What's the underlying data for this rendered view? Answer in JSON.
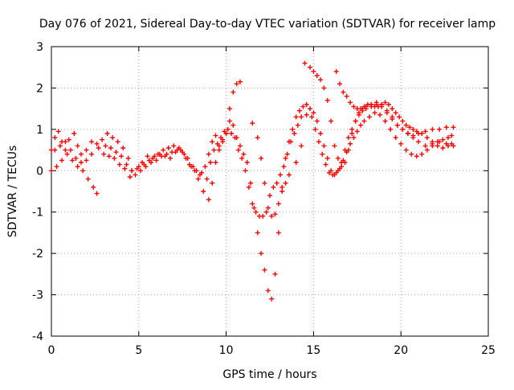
{
  "chart_data": {
    "type": "scatter",
    "title": "Day 076 of 2021, Sidereal Day-to-day VTEC variation (SDTVAR) for receiver lamp",
    "xlabel": "GPS time / hours",
    "ylabel": "SDTVAR / TECUs",
    "xlim": [
      0,
      25
    ],
    "ylim": [
      -4,
      3
    ],
    "x_ticks": [
      "0",
      "5",
      "10",
      "15",
      "20",
      "25"
    ],
    "y_ticks": [
      "-4",
      "-3",
      "-2",
      "-1",
      "0",
      "1",
      "2",
      "3"
    ],
    "grid": true,
    "legend": "none",
    "marker": "plus",
    "color": "#ff0000",
    "series": [
      {
        "points": [
          [
            0.0,
            0.5
          ],
          [
            0.2,
            0.8
          ],
          [
            0.4,
            0.95
          ],
          [
            0.6,
            0.7
          ],
          [
            0.8,
            0.5
          ],
          [
            1.0,
            0.75
          ],
          [
            1.3,
            0.9
          ],
          [
            1.5,
            0.6
          ],
          [
            1.7,
            0.4
          ],
          [
            2.0,
            0.5
          ],
          [
            2.3,
            0.7
          ],
          [
            2.6,
            0.65
          ],
          [
            2.9,
            0.75
          ],
          [
            3.2,
            0.9
          ],
          [
            3.5,
            0.8
          ],
          [
            3.8,
            0.7
          ],
          [
            4.1,
            0.55
          ],
          [
            4.4,
            0.3
          ],
          [
            4.6,
            0.0
          ],
          [
            4.9,
            0.05
          ],
          [
            5.2,
            0.2
          ],
          [
            5.5,
            0.35
          ],
          [
            5.8,
            0.3
          ],
          [
            6.1,
            0.4
          ],
          [
            6.4,
            0.5
          ],
          [
            6.7,
            0.55
          ],
          [
            7.0,
            0.6
          ],
          [
            7.3,
            0.55
          ],
          [
            7.6,
            0.4
          ],
          [
            7.9,
            0.15
          ],
          [
            8.2,
            0.0
          ],
          [
            8.5,
            -0.1
          ],
          [
            8.8,
            0.1
          ],
          [
            9.0,
            0.4
          ],
          [
            9.2,
            0.7
          ],
          [
            9.4,
            0.85
          ],
          [
            9.6,
            0.6
          ],
          [
            9.8,
            0.75
          ],
          [
            10.0,
            0.9
          ],
          [
            10.2,
            1.2
          ],
          [
            10.4,
            1.1
          ],
          [
            10.6,
            0.8
          ],
          [
            10.8,
            0.6
          ],
          [
            11.0,
            0.4
          ],
          [
            11.2,
            0.2
          ],
          [
            11.4,
            -0.3
          ],
          [
            11.6,
            -0.9
          ],
          [
            11.8,
            -1.5
          ],
          [
            12.0,
            -2.0
          ],
          [
            12.2,
            -2.4
          ],
          [
            12.4,
            -2.9
          ],
          [
            12.6,
            -3.1
          ],
          [
            12.8,
            -2.5
          ],
          [
            13.0,
            -1.5
          ],
          [
            13.2,
            -0.4
          ],
          [
            13.4,
            0.3
          ],
          [
            13.6,
            0.7
          ],
          [
            13.8,
            1.0
          ],
          [
            14.0,
            1.3
          ],
          [
            14.2,
            1.45
          ],
          [
            14.4,
            1.55
          ],
          [
            14.6,
            1.6
          ],
          [
            14.8,
            1.5
          ],
          [
            15.0,
            1.4
          ],
          [
            15.2,
            1.2
          ],
          [
            15.4,
            0.9
          ],
          [
            15.6,
            0.6
          ],
          [
            15.8,
            0.3
          ],
          [
            16.0,
            0.0
          ],
          [
            16.2,
            -0.1
          ],
          [
            16.4,
            0.0
          ],
          [
            16.6,
            0.2
          ],
          [
            16.8,
            0.5
          ],
          [
            17.0,
            0.8
          ],
          [
            17.2,
            1.0
          ],
          [
            17.4,
            1.2
          ],
          [
            17.6,
            1.35
          ],
          [
            17.8,
            1.45
          ],
          [
            18.0,
            1.5
          ],
          [
            18.3,
            1.55
          ],
          [
            18.6,
            1.6
          ],
          [
            18.9,
            1.55
          ],
          [
            19.2,
            1.45
          ],
          [
            19.5,
            1.3
          ],
          [
            19.8,
            1.1
          ],
          [
            20.1,
            1.0
          ],
          [
            20.4,
            0.9
          ],
          [
            20.7,
            0.8
          ],
          [
            21.0,
            0.7
          ],
          [
            21.4,
            0.6
          ],
          [
            21.8,
            0.65
          ],
          [
            22.2,
            0.7
          ],
          [
            22.6,
            0.65
          ],
          [
            23.0,
            0.6
          ]
        ]
      },
      {
        "points": [
          [
            0.0,
            0.0
          ],
          [
            0.3,
            0.1
          ],
          [
            0.6,
            0.25
          ],
          [
            0.9,
            0.4
          ],
          [
            1.2,
            0.25
          ],
          [
            1.5,
            0.1
          ],
          [
            1.8,
            0.0
          ],
          [
            2.1,
            -0.2
          ],
          [
            2.4,
            -0.4
          ],
          [
            2.6,
            -0.55
          ],
          [
            3.0,
            0.4
          ],
          [
            3.3,
            0.35
          ],
          [
            3.6,
            0.3
          ],
          [
            3.9,
            0.15
          ],
          [
            4.2,
            0.05
          ],
          [
            4.5,
            -0.15
          ],
          [
            4.8,
            -0.1
          ],
          [
            5.1,
            0.0
          ],
          [
            5.4,
            0.1
          ],
          [
            5.7,
            0.2
          ],
          [
            6.0,
            0.25
          ],
          [
            6.3,
            0.35
          ],
          [
            6.6,
            0.4
          ],
          [
            6.9,
            0.45
          ],
          [
            7.2,
            0.5
          ],
          [
            7.5,
            0.45
          ],
          [
            7.8,
            0.3
          ],
          [
            8.1,
            0.1
          ],
          [
            8.4,
            -0.2
          ],
          [
            8.7,
            -0.5
          ],
          [
            9.0,
            -0.7
          ],
          [
            9.2,
            -0.3
          ],
          [
            9.4,
            0.2
          ],
          [
            9.6,
            0.5
          ],
          [
            9.8,
            0.7
          ],
          [
            10.0,
            0.9
          ],
          [
            10.2,
            1.5
          ],
          [
            10.4,
            1.9
          ],
          [
            10.6,
            2.1
          ],
          [
            10.8,
            2.15
          ],
          [
            11.5,
            1.15
          ],
          [
            11.8,
            0.8
          ],
          [
            12.0,
            0.3
          ],
          [
            12.2,
            -0.3
          ],
          [
            12.4,
            -0.9
          ],
          [
            12.6,
            -1.1
          ],
          [
            12.8,
            -1.05
          ],
          [
            13.0,
            -0.8
          ],
          [
            13.2,
            -0.5
          ],
          [
            13.4,
            -0.3
          ],
          [
            13.6,
            -0.1
          ],
          [
            14.0,
            0.2
          ],
          [
            14.3,
            0.6
          ],
          [
            14.5,
            2.6
          ],
          [
            14.8,
            2.5
          ],
          [
            15.0,
            2.4
          ],
          [
            15.2,
            2.3
          ],
          [
            15.4,
            2.2
          ],
          [
            15.6,
            2.0
          ],
          [
            15.8,
            1.7
          ],
          [
            16.0,
            1.2
          ],
          [
            16.2,
            0.6
          ],
          [
            16.4,
            0.3
          ],
          [
            16.6,
            0.1
          ],
          [
            16.8,
            0.2
          ],
          [
            17.0,
            0.5
          ],
          [
            17.2,
            0.9
          ],
          [
            17.4,
            1.2
          ],
          [
            17.6,
            1.4
          ],
          [
            17.8,
            1.5
          ],
          [
            18.0,
            1.55
          ],
          [
            18.3,
            1.6
          ],
          [
            18.6,
            1.65
          ],
          [
            18.9,
            1.6
          ],
          [
            19.2,
            1.4
          ],
          [
            19.5,
            1.25
          ],
          [
            19.8,
            1.1
          ],
          [
            20.1,
            1.0
          ],
          [
            20.4,
            0.9
          ],
          [
            20.7,
            0.85
          ],
          [
            21.0,
            0.9
          ],
          [
            21.4,
            0.95
          ],
          [
            21.8,
            1.0
          ],
          [
            22.2,
            1.0
          ],
          [
            22.6,
            1.05
          ],
          [
            23.0,
            1.05
          ]
        ]
      },
      {
        "points": [
          [
            0.2,
            0.5
          ],
          [
            0.5,
            0.6
          ],
          [
            0.8,
            0.7
          ],
          [
            1.1,
            0.5
          ],
          [
            1.4,
            0.3
          ],
          [
            1.7,
            0.2
          ],
          [
            2.0,
            0.25
          ],
          [
            2.3,
            0.4
          ],
          [
            2.7,
            0.55
          ],
          [
            3.1,
            0.6
          ],
          [
            3.4,
            0.55
          ],
          [
            3.7,
            0.45
          ],
          [
            4.0,
            0.35
          ],
          [
            4.3,
            0.15
          ],
          [
            4.6,
            0.0
          ],
          [
            5.0,
            0.1
          ],
          [
            5.3,
            0.15
          ],
          [
            5.6,
            0.25
          ],
          [
            5.9,
            0.35
          ],
          [
            6.2,
            0.4
          ],
          [
            6.5,
            0.35
          ],
          [
            6.8,
            0.3
          ],
          [
            7.1,
            0.45
          ],
          [
            7.4,
            0.5
          ],
          [
            7.7,
            0.3
          ],
          [
            8.0,
            0.1
          ],
          [
            8.3,
            0.0
          ],
          [
            8.6,
            -0.05
          ],
          [
            8.9,
            -0.2
          ],
          [
            9.1,
            0.2
          ],
          [
            9.3,
            0.5
          ],
          [
            9.5,
            0.65
          ],
          [
            9.7,
            0.8
          ],
          [
            9.9,
            0.95
          ],
          [
            10.1,
            1.0
          ],
          [
            10.3,
            0.9
          ],
          [
            10.5,
            0.8
          ],
          [
            10.7,
            0.5
          ],
          [
            10.9,
            0.3
          ],
          [
            11.1,
            0.0
          ],
          [
            11.3,
            -0.4
          ],
          [
            11.5,
            -0.8
          ],
          [
            11.7,
            -1.0
          ],
          [
            11.9,
            -1.1
          ],
          [
            12.1,
            -1.1
          ],
          [
            12.3,
            -1.0
          ],
          [
            12.5,
            -0.6
          ],
          [
            12.7,
            -0.4
          ],
          [
            12.9,
            -0.3
          ],
          [
            13.1,
            -0.1
          ],
          [
            13.3,
            0.1
          ],
          [
            13.5,
            0.4
          ],
          [
            13.7,
            0.7
          ],
          [
            13.9,
            0.9
          ],
          [
            14.1,
            1.1
          ],
          [
            14.3,
            1.3
          ],
          [
            14.6,
            1.35
          ],
          [
            14.9,
            1.3
          ],
          [
            15.1,
            1.0
          ],
          [
            15.3,
            0.7
          ],
          [
            15.5,
            0.4
          ],
          [
            15.7,
            0.15
          ],
          [
            15.9,
            -0.05
          ],
          [
            16.1,
            -0.1
          ],
          [
            16.3,
            -0.05
          ],
          [
            16.5,
            0.05
          ],
          [
            16.7,
            0.25
          ],
          [
            16.9,
            0.45
          ],
          [
            17.1,
            0.65
          ],
          [
            17.3,
            0.8
          ],
          [
            17.5,
            0.95
          ],
          [
            17.7,
            1.1
          ],
          [
            17.9,
            1.2
          ],
          [
            18.2,
            1.3
          ],
          [
            18.5,
            1.4
          ],
          [
            18.8,
            1.35
          ],
          [
            19.1,
            1.2
          ],
          [
            19.4,
            1.0
          ],
          [
            19.7,
            0.8
          ],
          [
            20.0,
            0.65
          ],
          [
            20.3,
            0.5
          ],
          [
            20.6,
            0.4
          ],
          [
            20.9,
            0.35
          ],
          [
            21.2,
            0.4
          ],
          [
            21.5,
            0.5
          ],
          [
            21.8,
            0.6
          ],
          [
            22.1,
            0.7
          ],
          [
            22.4,
            0.75
          ],
          [
            22.7,
            0.8
          ],
          [
            22.9,
            0.85
          ]
        ]
      },
      {
        "points": [
          [
            16.3,
            2.4
          ],
          [
            16.5,
            2.1
          ],
          [
            16.7,
            1.9
          ],
          [
            16.9,
            1.8
          ],
          [
            17.1,
            1.65
          ],
          [
            17.3,
            1.55
          ],
          [
            17.5,
            1.5
          ],
          [
            17.7,
            1.5
          ],
          [
            17.9,
            1.55
          ],
          [
            18.1,
            1.6
          ],
          [
            18.3,
            1.6
          ],
          [
            18.5,
            1.55
          ],
          [
            18.7,
            1.55
          ],
          [
            18.9,
            1.6
          ],
          [
            19.1,
            1.65
          ],
          [
            19.3,
            1.6
          ],
          [
            19.5,
            1.5
          ],
          [
            19.7,
            1.4
          ],
          [
            19.9,
            1.3
          ],
          [
            20.1,
            1.2
          ],
          [
            20.3,
            1.1
          ],
          [
            20.5,
            1.05
          ],
          [
            20.7,
            1.0
          ],
          [
            20.9,
            0.95
          ],
          [
            21.2,
            0.9
          ],
          [
            21.5,
            0.8
          ],
          [
            21.8,
            0.7
          ],
          [
            22.1,
            0.6
          ],
          [
            22.4,
            0.55
          ],
          [
            22.7,
            0.6
          ],
          [
            22.9,
            0.65
          ]
        ]
      }
    ]
  }
}
